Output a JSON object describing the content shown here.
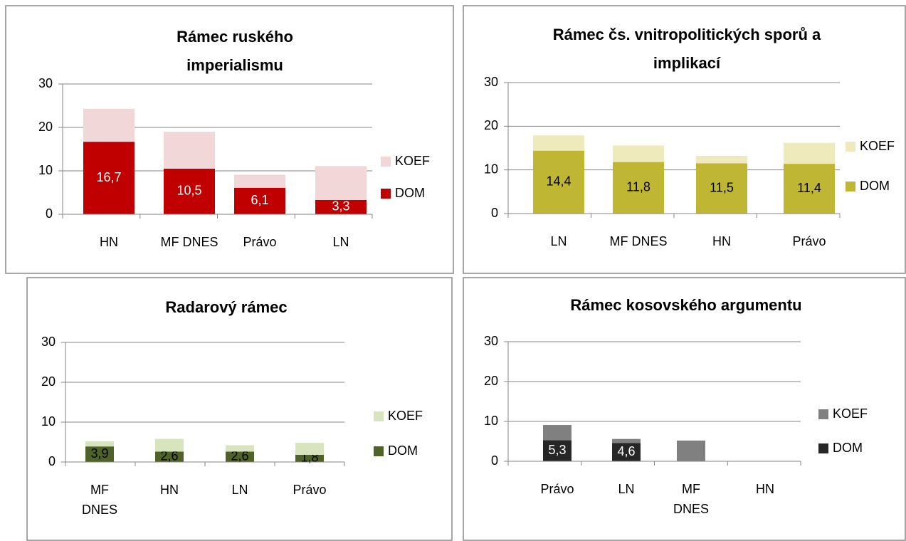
{
  "chart_data": [
    {
      "type": "bar",
      "stacked": true,
      "title": "Rámec ruského imperialismu",
      "categories": [
        "HN",
        "MF DNES",
        "Právo",
        "LN"
      ],
      "series": [
        {
          "name": "DOM",
          "color": "#c00000",
          "values": [
            16.7,
            10.5,
            6.1,
            3.3
          ],
          "value_labels": [
            "16,7",
            "10,5",
            "6,1",
            "3,3"
          ]
        },
        {
          "name": "KOEF",
          "color": "#f2d7d8",
          "values": [
            7.6,
            8.5,
            3.0,
            7.8
          ]
        }
      ],
      "ylim": [
        0,
        30
      ],
      "yticks": [
        0,
        10,
        20,
        30
      ],
      "grid": true,
      "legend": "right"
    },
    {
      "type": "bar",
      "stacked": true,
      "title": "Rámec čs. vnitropolitických sporů a implikací",
      "categories": [
        "LN",
        "MF DNES",
        "HN",
        "Právo"
      ],
      "series": [
        {
          "name": "DOM",
          "color": "#bfb733",
          "values": [
            14.4,
            11.8,
            11.5,
            11.4
          ],
          "value_labels": [
            "14,4",
            "11,8",
            "11,5",
            "11,4"
          ]
        },
        {
          "name": "KOEF",
          "color": "#eeeabb",
          "values": [
            3.5,
            3.8,
            1.7,
            4.8
          ]
        }
      ],
      "ylim": [
        0,
        30
      ],
      "yticks": [
        0,
        10,
        20,
        30
      ],
      "grid": true,
      "legend": "right"
    },
    {
      "type": "bar",
      "stacked": true,
      "title": "Radarový rámec",
      "categories": [
        "MF DNES",
        "HN",
        "LN",
        "Právo"
      ],
      "series": [
        {
          "name": "DOM",
          "color": "#4f6228",
          "values": [
            3.9,
            2.6,
            2.6,
            1.8
          ],
          "value_labels": [
            "3,9",
            "2,6",
            "2,6",
            "1,8"
          ]
        },
        {
          "name": "KOEF",
          "color": "#d7e4bd",
          "values": [
            1.3,
            3.2,
            1.6,
            3.0
          ]
        }
      ],
      "ylim": [
        0,
        30
      ],
      "yticks": [
        0,
        10,
        20,
        30
      ],
      "grid": true,
      "legend": "right"
    },
    {
      "type": "bar",
      "stacked": true,
      "title": "Rámec kosovského argumentu",
      "categories": [
        "Právo",
        "LN",
        "MF DNES",
        "HN"
      ],
      "series": [
        {
          "name": "DOM",
          "color": "#262626",
          "values": [
            5.3,
            4.6,
            0,
            0
          ],
          "value_labels": [
            "5,3",
            "4,6",
            null,
            null
          ]
        },
        {
          "name": "KOEF",
          "color": "#808080",
          "values": [
            3.8,
            1.0,
            5.2,
            0
          ]
        }
      ],
      "ylim": [
        0,
        30
      ],
      "yticks": [
        0,
        10,
        20,
        30
      ],
      "grid": true,
      "legend": "right"
    }
  ]
}
